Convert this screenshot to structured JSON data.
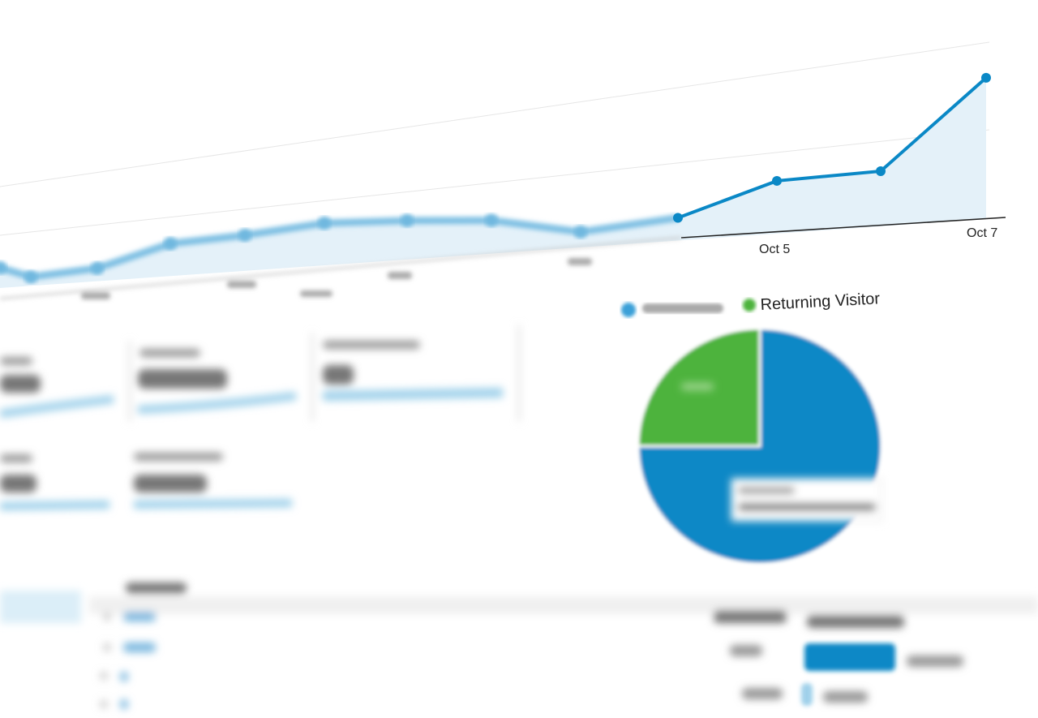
{
  "colors": {
    "primary_blue": "#0a88c6",
    "area_fill": "#e4f1f9",
    "returning_green": "#4db33d",
    "axis": "#222222"
  },
  "chart_data": [
    {
      "type": "area",
      "title": "",
      "xlabel": "",
      "ylabel": "",
      "x_tick_labels_legible": [
        "Oct 5",
        "Oct 7"
      ],
      "values": [
        25,
        11,
        16,
        40,
        44,
        52,
        48,
        41,
        19,
        28,
        65,
        68,
        174
      ],
      "grid": true
    },
    {
      "type": "pie",
      "legend": {
        "placement": "top",
        "entries": [
          {
            "name": "",
            "color": "#0a88c6"
          },
          {
            "name": "Returning Visitor",
            "color": "#4db33d"
          }
        ]
      },
      "slices": [
        {
          "label": "",
          "value": 75,
          "color": "#0a88c6"
        },
        {
          "label": "Returning Visitor",
          "value": 25,
          "color": "#4db33d"
        }
      ]
    }
  ],
  "table": {
    "bar_fractions": [
      0.8,
      0.1
    ]
  }
}
